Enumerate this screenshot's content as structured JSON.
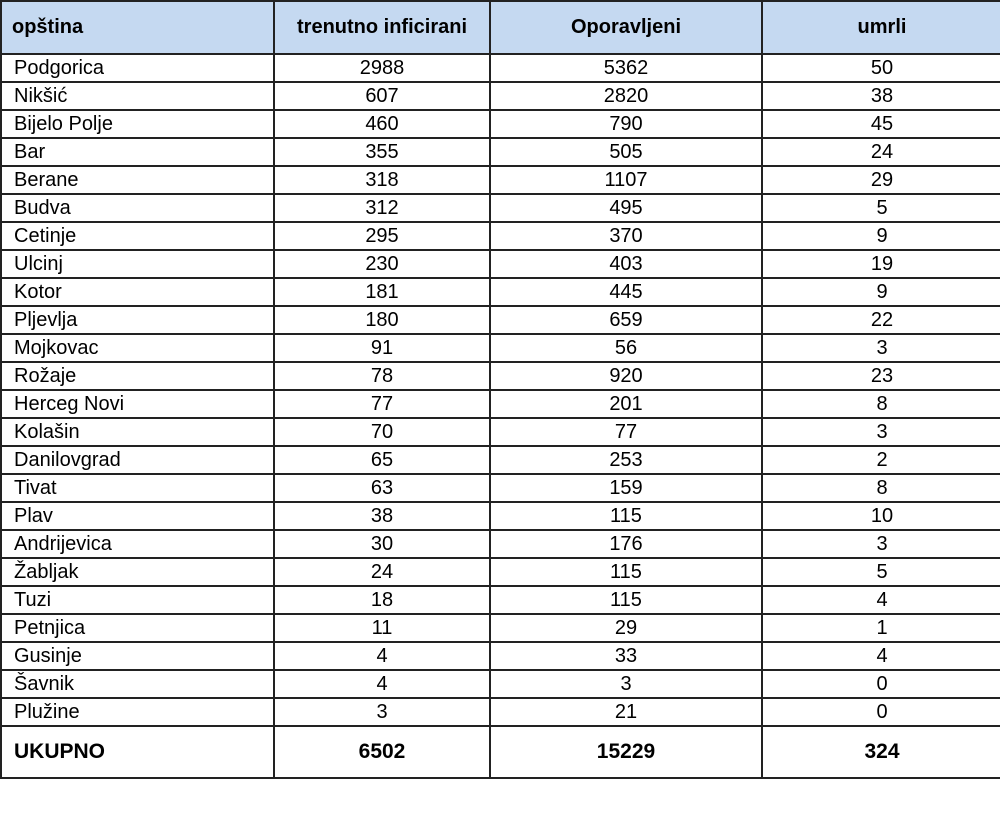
{
  "table": {
    "headers": [
      "opština",
      "trenutno inficirani",
      "Oporavljeni",
      "umrli"
    ],
    "rows": [
      [
        "Podgorica",
        "2988",
        "5362",
        "50"
      ],
      [
        "Nikšić",
        "607",
        "2820",
        "38"
      ],
      [
        "Bijelo Polje",
        "460",
        "790",
        "45"
      ],
      [
        "Bar",
        "355",
        "505",
        "24"
      ],
      [
        "Berane",
        "318",
        "1107",
        "29"
      ],
      [
        "Budva",
        "312",
        "495",
        "5"
      ],
      [
        "Cetinje",
        "295",
        "370",
        "9"
      ],
      [
        "Ulcinj",
        "230",
        "403",
        "19"
      ],
      [
        "Kotor",
        "181",
        "445",
        "9"
      ],
      [
        "Pljevlja",
        "180",
        "659",
        "22"
      ],
      [
        "Mojkovac",
        "91",
        "56",
        "3"
      ],
      [
        "Rožaje",
        "78",
        "920",
        "23"
      ],
      [
        "Herceg Novi",
        "77",
        "201",
        "8"
      ],
      [
        "Kolašin",
        "70",
        "77",
        "3"
      ],
      [
        "Danilovgrad",
        "65",
        "253",
        "2"
      ],
      [
        "Tivat",
        "63",
        "159",
        "8"
      ],
      [
        "Plav",
        "38",
        "115",
        "10"
      ],
      [
        "Andrijevica",
        "30",
        "176",
        "3"
      ],
      [
        "Žabljak",
        "24",
        "115",
        "5"
      ],
      [
        "Tuzi",
        "18",
        "115",
        "4"
      ],
      [
        "Petnjica",
        "11",
        "29",
        "1"
      ],
      [
        "Gusinje",
        "4",
        "33",
        "4"
      ],
      [
        "Šavnik",
        "4",
        "3",
        "0"
      ],
      [
        "Plužine",
        "3",
        "21",
        "0"
      ]
    ],
    "total": [
      "UKUPNO",
      "6502",
      "15229",
      "324"
    ]
  },
  "colors": {
    "header_background": "#c5d9f1",
    "border": "#222222",
    "text": "#000000"
  }
}
